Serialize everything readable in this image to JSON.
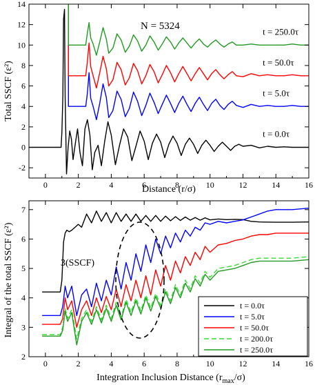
{
  "colors": {
    "black": "#000000",
    "blue": "#0000ff",
    "red": "#ff0000",
    "lightgreen": "#33dd33",
    "green": "#229922",
    "annotation_ellipse": "#000000"
  },
  "chart_data": [
    {
      "type": "line",
      "annotation": "N = 5324",
      "xlabel": "Distance  (r/σ)",
      "ylabel": "Total  SSCF (ε²)",
      "xlim": [
        -1,
        16
      ],
      "ylim": [
        -3,
        14
      ],
      "xticks": [
        0,
        2,
        4,
        6,
        8,
        10,
        12,
        14,
        16
      ],
      "yticks": [
        -2,
        0,
        2,
        4,
        6,
        8,
        10,
        12,
        14
      ],
      "grid": false,
      "series": [
        {
          "name": "t = 0.0τ",
          "color": "black",
          "offset": 0,
          "label_pos": [
            13.2,
            1.0
          ],
          "x": [
            -1,
            0.95,
            1.0,
            1.06,
            1.1,
            1.16,
            1.2,
            1.28,
            1.38,
            1.48,
            1.58,
            1.68,
            1.8,
            1.95,
            2.1,
            2.25,
            2.4,
            2.55,
            2.7,
            2.85,
            3.0,
            3.2,
            3.4,
            3.6,
            3.8,
            4.0,
            4.25,
            4.5,
            4.75,
            5.0,
            5.25,
            5.5,
            5.75,
            6.0,
            6.25,
            6.5,
            6.75,
            7.0,
            7.25,
            7.5,
            7.75,
            8.0,
            8.25,
            8.5,
            8.75,
            9.0,
            9.25,
            9.5,
            9.75,
            10.0,
            10.25,
            10.5,
            10.75,
            11.0,
            11.25,
            11.5,
            11.75,
            12.0,
            12.5,
            13.0,
            13.5,
            14.0,
            14.5,
            15.0,
            15.5,
            16.0
          ],
          "y": [
            0,
            0,
            1.5,
            5,
            12.5,
            13.5,
            5,
            -2.6,
            0,
            1.6,
            0.8,
            -1.2,
            0.2,
            1.8,
            -0.5,
            -1.8,
            1.8,
            2.7,
            1.2,
            -2.2,
            -0.5,
            0.2,
            -1.8,
            0.6,
            2.5,
            1.2,
            -1.7,
            0.2,
            1.8,
            1.0,
            -1.3,
            0.1,
            1.6,
            0.6,
            -1.2,
            0.4,
            1.3,
            0.5,
            -1.0,
            0.3,
            1.1,
            0.4,
            -0.8,
            0.3,
            0.9,
            0.3,
            -0.6,
            0.2,
            0.7,
            0.2,
            -0.4,
            0.1,
            0.5,
            0.1,
            -0.3,
            0.1,
            0.3,
            0.1,
            0.2,
            -0.05,
            0.1,
            0.0,
            0.05,
            0.0,
            0.0,
            0.0
          ]
        },
        {
          "name": "t = 5.0τ",
          "color": "blue",
          "offset": 4,
          "label_pos": [
            13.2,
            5.0
          ],
          "x": [
            1.4,
            1.4,
            1.55,
            1.7,
            1.85,
            2.0,
            2.15,
            2.3,
            2.45,
            2.55,
            2.65,
            2.75,
            2.9,
            3.1,
            3.3,
            3.5,
            3.7,
            3.85,
            4.1,
            4.35,
            4.6,
            4.85,
            5.1,
            5.35,
            5.6,
            5.85,
            6.1,
            6.35,
            6.6,
            6.85,
            7.1,
            7.35,
            7.6,
            7.85,
            8.1,
            8.35,
            8.6,
            8.85,
            9.1,
            9.35,
            9.6,
            9.85,
            10.1,
            10.35,
            10.6,
            10.85,
            11.1,
            11.35,
            11.6,
            12.0,
            12.5,
            13.0,
            13.5,
            14.0,
            14.5,
            15.0,
            15.5,
            16.0
          ],
          "y": [
            14,
            4,
            4,
            4,
            4,
            4,
            4,
            4,
            4,
            5.3,
            7.3,
            4.8,
            4.0,
            2.7,
            4.3,
            6.2,
            4.9,
            2.9,
            3.6,
            5.5,
            4.7,
            3.0,
            3.8,
            5.4,
            4.5,
            3.1,
            4.1,
            5.3,
            4.4,
            3.3,
            4.2,
            5.1,
            4.3,
            3.4,
            4.3,
            5.0,
            4.2,
            3.5,
            4.3,
            4.9,
            4.2,
            3.6,
            4.3,
            4.7,
            4.1,
            3.7,
            4.2,
            4.5,
            4.1,
            3.9,
            4.2,
            4.0,
            4.1,
            4.0,
            4.0,
            4.1,
            4.0,
            4.0
          ]
        },
        {
          "name": "t = 50.0τ",
          "color": "red",
          "offset": 7,
          "label_pos": [
            13.2,
            8.0
          ],
          "x": [
            1.4,
            1.4,
            1.55,
            1.7,
            1.85,
            2.0,
            2.15,
            2.3,
            2.45,
            2.55,
            2.65,
            2.75,
            2.9,
            3.1,
            3.3,
            3.5,
            3.7,
            3.85,
            4.1,
            4.35,
            4.6,
            4.85,
            5.1,
            5.35,
            5.6,
            5.85,
            6.1,
            6.35,
            6.6,
            6.85,
            7.1,
            7.35,
            7.6,
            7.85,
            8.1,
            8.35,
            8.6,
            8.85,
            9.1,
            9.35,
            9.6,
            9.85,
            10.1,
            10.35,
            10.6,
            10.85,
            11.1,
            11.35,
            11.6,
            12.0,
            12.5,
            13.0,
            13.5,
            14.0,
            14.5,
            15.0,
            15.5,
            16.0
          ],
          "y": [
            14,
            7,
            7,
            7,
            7,
            7,
            7,
            7,
            7,
            8.4,
            10.2,
            7.9,
            7.0,
            5.8,
            7.3,
            8.9,
            7.7,
            6.0,
            6.6,
            8.3,
            7.6,
            6.1,
            6.8,
            8.2,
            7.5,
            6.2,
            7.0,
            8.1,
            7.4,
            6.3,
            7.1,
            8.0,
            7.3,
            6.4,
            7.2,
            7.9,
            7.2,
            6.5,
            7.2,
            7.8,
            7.2,
            6.6,
            7.2,
            7.6,
            7.1,
            6.7,
            7.1,
            7.4,
            7.0,
            6.9,
            7.2,
            7.0,
            7.1,
            7.0,
            7.0,
            7.1,
            7.0,
            7.0
          ]
        },
        {
          "name": "t = 250.0τ",
          "color": "green",
          "offset": 10,
          "label_pos": [
            13.2,
            11.0
          ],
          "x": [
            1.4,
            1.4,
            1.55,
            1.7,
            1.85,
            2.0,
            2.15,
            2.3,
            2.45,
            2.55,
            2.65,
            2.75,
            2.9,
            3.1,
            3.3,
            3.5,
            3.7,
            3.85,
            4.1,
            4.35,
            4.6,
            4.85,
            5.1,
            5.35,
            5.6,
            5.85,
            6.1,
            6.35,
            6.6,
            6.85,
            7.1,
            7.35,
            7.6,
            7.85,
            8.1,
            8.35,
            8.6,
            8.85,
            9.1,
            9.35,
            9.6,
            9.85,
            10.1,
            10.35,
            10.6,
            10.85,
            11.1,
            11.35,
            11.6,
            12.0,
            12.5,
            13.0,
            13.5,
            14.0,
            14.5,
            15.0,
            15.5,
            16.0
          ],
          "y": [
            14,
            10,
            10,
            10,
            10,
            10,
            10,
            10,
            10,
            11.2,
            12.2,
            10.7,
            10.1,
            9.0,
            10.3,
            11.7,
            10.6,
            9.2,
            9.7,
            11.1,
            10.5,
            9.3,
            9.9,
            11.0,
            10.4,
            9.4,
            10.0,
            10.9,
            10.3,
            9.5,
            10.1,
            10.8,
            10.3,
            9.6,
            10.2,
            10.7,
            10.2,
            9.7,
            10.2,
            10.6,
            10.1,
            9.8,
            10.2,
            10.5,
            10.1,
            9.8,
            10.1,
            10.3,
            10.0,
            10.0,
            10.1,
            10.0,
            10.0,
            10.0,
            10.0,
            10.1,
            10.0,
            10.0
          ]
        }
      ]
    },
    {
      "type": "line",
      "annotation": "3(SSCF)",
      "xlabel": "Integration Inclusion Distance  (r",
      "xlabel_sub": "max",
      "xlabel_tail": "/σ)",
      "ylabel": "Integral of the total  SSCF (ε²)",
      "xlim": [
        -1,
        16
      ],
      "ylim": [
        2,
        7.3
      ],
      "xticks": [
        0,
        2,
        4,
        6,
        8,
        10,
        12,
        14,
        16
      ],
      "yticks": [
        2,
        3,
        4,
        5,
        6,
        7
      ],
      "grid": false,
      "legend_position": "right",
      "series": [
        {
          "name": "t = 0.0τ",
          "color": "black",
          "dashed": false,
          "x": [
            -0.2,
            0.9,
            1.0,
            1.1,
            1.2,
            1.3,
            1.45,
            1.6,
            1.8,
            2.0,
            2.2,
            2.5,
            2.8,
            3.1,
            3.4,
            3.7,
            4.0,
            4.3,
            4.6,
            4.9,
            5.2,
            5.5,
            5.8,
            6.1,
            6.4,
            6.7,
            7.0,
            7.3,
            7.6,
            7.9,
            8.2,
            8.5,
            8.8,
            9.1,
            9.4,
            9.7,
            10.0,
            10.5,
            11.0,
            11.5,
            12.0,
            12.5,
            13.0,
            14.0,
            15.0,
            16.0
          ],
          "y": [
            4.2,
            4.2,
            4.6,
            5.9,
            6.2,
            6.3,
            6.25,
            6.3,
            6.4,
            6.5,
            6.4,
            6.85,
            6.55,
            6.95,
            6.6,
            6.9,
            6.55,
            6.9,
            6.6,
            6.85,
            6.6,
            6.85,
            6.6,
            6.8,
            6.6,
            6.8,
            6.6,
            6.78,
            6.62,
            6.76,
            6.63,
            6.75,
            6.64,
            6.73,
            6.64,
            6.72,
            6.65,
            6.68,
            6.66,
            6.67,
            6.66,
            6.6,
            6.58,
            6.57,
            6.57,
            6.58
          ]
        },
        {
          "name": "t = 5.0τ",
          "color": "blue",
          "dashed": false,
          "x": [
            -0.2,
            0.9,
            1.05,
            1.2,
            1.35,
            1.6,
            1.9,
            2.2,
            2.5,
            2.8,
            3.1,
            3.4,
            3.7,
            4.0,
            4.3,
            4.6,
            4.9,
            5.2,
            5.5,
            5.8,
            6.1,
            6.4,
            6.7,
            7.0,
            7.3,
            7.6,
            7.9,
            8.2,
            8.5,
            8.8,
            9.1,
            9.4,
            9.7,
            10.0,
            10.5,
            11.0,
            11.5,
            12.0,
            12.5,
            13.0,
            13.5,
            14.0,
            15.0,
            16.0
          ],
          "y": [
            3.4,
            3.4,
            3.7,
            4.4,
            4.0,
            4.4,
            3.4,
            4.1,
            4.3,
            3.7,
            4.5,
            3.9,
            4.6,
            4.1,
            5.05,
            4.3,
            5.2,
            4.6,
            5.5,
            4.9,
            5.8,
            5.2,
            6.0,
            5.5,
            6.1,
            5.7,
            6.2,
            5.9,
            6.3,
            6.1,
            6.4,
            6.3,
            6.55,
            6.5,
            6.6,
            6.55,
            6.6,
            6.65,
            6.75,
            6.85,
            6.95,
            7.0,
            7.0,
            7.05
          ]
        },
        {
          "name": "t = 50.0τ",
          "color": "red",
          "dashed": false,
          "x": [
            -0.2,
            0.9,
            1.05,
            1.2,
            1.35,
            1.6,
            1.9,
            2.2,
            2.5,
            2.8,
            3.1,
            3.4,
            3.7,
            4.0,
            4.3,
            4.6,
            4.9,
            5.2,
            5.5,
            5.8,
            6.1,
            6.4,
            6.7,
            7.0,
            7.3,
            7.6,
            7.9,
            8.2,
            8.5,
            8.8,
            9.1,
            9.4,
            9.7,
            10.0,
            10.5,
            11.0,
            11.5,
            12.0,
            12.5,
            13.0,
            13.5,
            14.0,
            15.0,
            16.0
          ],
          "y": [
            3.1,
            3.1,
            3.3,
            4.0,
            3.6,
            3.9,
            3.0,
            3.6,
            3.9,
            3.4,
            4.0,
            3.5,
            4.05,
            3.6,
            4.3,
            3.7,
            4.45,
            3.9,
            4.6,
            4.0,
            4.75,
            4.1,
            4.95,
            4.4,
            5.1,
            4.6,
            5.25,
            4.85,
            5.4,
            5.1,
            5.55,
            5.3,
            5.75,
            5.55,
            5.8,
            5.85,
            5.95,
            6.0,
            6.1,
            6.15,
            6.15,
            6.2,
            6.2,
            6.2
          ]
        },
        {
          "name": "t = 200.0τ",
          "color": "lightgreen",
          "dashed": true,
          "x": [
            -0.2,
            0.9,
            1.05,
            1.2,
            1.35,
            1.6,
            1.9,
            2.2,
            2.5,
            2.8,
            3.1,
            3.4,
            3.7,
            4.0,
            4.3,
            4.6,
            4.9,
            5.2,
            5.5,
            5.8,
            6.1,
            6.4,
            6.7,
            7.0,
            7.3,
            7.6,
            7.9,
            8.2,
            8.5,
            8.8,
            9.1,
            9.4,
            9.7,
            10.0,
            10.5,
            11.0,
            11.5,
            12.0,
            12.5,
            13.0,
            13.5,
            14.0,
            15.0,
            16.0
          ],
          "y": [
            2.75,
            2.75,
            3.0,
            3.65,
            3.3,
            3.6,
            2.6,
            3.3,
            3.6,
            3.2,
            3.7,
            3.25,
            3.75,
            3.3,
            3.85,
            3.35,
            3.95,
            3.5,
            4.0,
            3.55,
            4.1,
            3.65,
            4.15,
            3.75,
            4.3,
            3.9,
            4.45,
            4.1,
            4.6,
            4.3,
            4.75,
            4.5,
            4.9,
            4.7,
            5.0,
            5.05,
            5.1,
            5.2,
            5.3,
            5.35,
            5.35,
            5.35,
            5.35,
            5.4
          ]
        },
        {
          "name": "t = 250.0τ",
          "color": "green",
          "dashed": false,
          "x": [
            -0.2,
            0.9,
            1.05,
            1.2,
            1.35,
            1.6,
            1.9,
            2.2,
            2.5,
            2.8,
            3.1,
            3.4,
            3.7,
            4.0,
            4.3,
            4.6,
            4.9,
            5.2,
            5.5,
            5.8,
            6.1,
            6.4,
            6.7,
            7.0,
            7.3,
            7.6,
            7.9,
            8.2,
            8.5,
            8.8,
            9.1,
            9.4,
            9.7,
            10.0,
            10.5,
            11.0,
            11.5,
            12.0,
            12.5,
            13.0,
            13.5,
            14.0,
            15.0,
            16.0
          ],
          "y": [
            2.7,
            2.7,
            2.9,
            3.55,
            3.2,
            3.5,
            2.4,
            3.2,
            3.5,
            3.1,
            3.6,
            3.15,
            3.65,
            3.2,
            3.75,
            3.25,
            3.85,
            3.4,
            3.9,
            3.45,
            4.0,
            3.55,
            4.05,
            3.65,
            4.2,
            3.8,
            4.35,
            4.0,
            4.5,
            4.2,
            4.65,
            4.4,
            4.8,
            4.6,
            4.9,
            4.95,
            5.0,
            5.1,
            5.2,
            5.25,
            5.25,
            5.25,
            5.25,
            5.3
          ]
        }
      ]
    }
  ]
}
